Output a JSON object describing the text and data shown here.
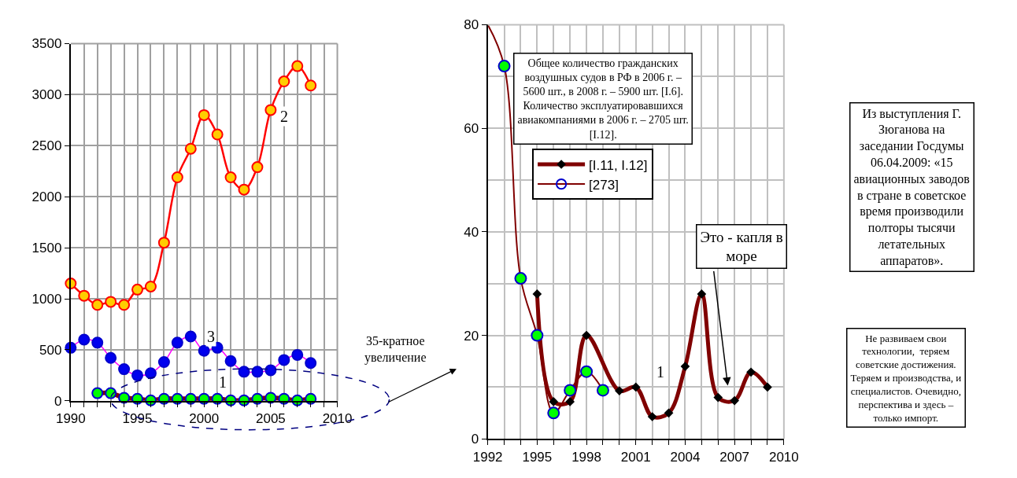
{
  "chart_data": [
    {
      "type": "line",
      "xlim": [
        1990,
        2010
      ],
      "xticks": [
        1990,
        1995,
        2000,
        2005,
        2010
      ],
      "ylim": [
        0,
        3500
      ],
      "yticks": [
        0,
        500,
        1000,
        1500,
        2000,
        2500,
        3000,
        3500
      ],
      "grid": true,
      "legend": false,
      "marker": "circle",
      "series": [
        {
          "color": "#ff0000",
          "colors": [
            "#ffcc00",
            "#ffcc00",
            "#ffcc00",
            "#ffcc00",
            "#ffcc00",
            "#ffcc00",
            "#ffcc00",
            "#ffcc00",
            "#ffcc00",
            "#ffcc00",
            "#ffcc00",
            "#ffcc00",
            "#ffcc00",
            "#ffcc00",
            "#ffcc00",
            "#ffcc00",
            "#ffcc00",
            "#ffcc00",
            "#ffcc00"
          ],
          "x": [
            1990,
            1991,
            1992,
            1993,
            1994,
            1995,
            1996,
            1997,
            1998,
            1999,
            2000,
            2001,
            2002,
            2003,
            2004,
            2005,
            2006,
            2007,
            2008
          ],
          "values": [
            1150,
            1030,
            940,
            970,
            940,
            1090,
            1120,
            1550,
            2190,
            2470,
            2800,
            2610,
            2190,
            2070,
            2290,
            2850,
            3130,
            3280,
            3090
          ]
        },
        {
          "color": "#ff00ff",
          "colors": [
            "#0000ee",
            "#0000ee",
            "#0000ee",
            "#0000ee",
            "#0000ee",
            "#0000ee",
            "#0000ee",
            "#0000ee",
            "#0000ee",
            "#0000ee",
            "#0000ee",
            "#0000ee",
            "#0000ee",
            "#0000ee",
            "#0000ee",
            "#0000ee",
            "#0000ee",
            "#0000ee",
            "#0000ee"
          ],
          "x": [
            1990,
            1991,
            1992,
            1993,
            1994,
            1995,
            1996,
            1997,
            1998,
            1999,
            2000,
            2001,
            2002,
            2003,
            2004,
            2005,
            2006,
            2007,
            2008
          ],
          "values": [
            520,
            600,
            570,
            420,
            310,
            250,
            270,
            380,
            570,
            630,
            490,
            520,
            390,
            285,
            285,
            300,
            400,
            450,
            370
          ]
        },
        {
          "color": "#800000",
          "colors": [
            "#00ff00",
            "#00ff00",
            "#00ff00",
            "#00ff00",
            "#00ff00",
            "#00ff00",
            "#00ff00",
            "#00ff00",
            "#00ff00",
            "#00ff00",
            "#00ff00",
            "#00ff00",
            "#00ff00",
            "#00ff00",
            "#00ff00",
            "#00ff00",
            "#00ff00"
          ],
          "x": [
            1992,
            1993,
            1994,
            1995,
            1996,
            1997,
            1998,
            1999,
            2000,
            2001,
            2002,
            2003,
            2004,
            2005,
            2006,
            2007,
            2008
          ],
          "values": [
            75,
            75,
            30,
            20,
            5,
            20,
            20,
            20,
            20,
            20,
            5,
            5,
            20,
            30,
            20,
            5,
            20
          ]
        }
      ],
      "annotations": [
        {
          "text": "2",
          "x": 2006,
          "y": 2790
        },
        {
          "text": "3",
          "x": 2000.5,
          "y": 627
        },
        {
          "text": "1",
          "x": 2001.4,
          "y": 187
        },
        "35-кратное\nувеличение"
      ]
    },
    {
      "type": "line",
      "xlim": [
        1992,
        2010
      ],
      "xticks": [
        1992,
        1995,
        1998,
        2001,
        2004,
        2007,
        2010
      ],
      "ylim": [
        0,
        80
      ],
      "yticks": [
        0,
        20,
        40,
        60,
        80
      ],
      "grid": true,
      "legend": "top left",
      "series": [
        {
          "name": "[I.11, I.12]",
          "color": "#800000",
          "marker": "diamond",
          "colors": [
            "#000000",
            "#000000",
            "#000000",
            "#000000",
            "#000000",
            "#000000",
            "#000000",
            "#000000",
            "#000000",
            "#000000",
            "#000000",
            "#000000",
            "#000000",
            "#000000"
          ],
          "x": [
            1995,
            1996,
            1997,
            1998,
            2000,
            2001,
            2002,
            2003,
            2004,
            2005,
            2006,
            2007,
            2008,
            2009
          ],
          "values": [
            28,
            7.2,
            7.2,
            20,
            9.3,
            10,
            4.3,
            5,
            14,
            28,
            8,
            7.4,
            12.9,
            10
          ]
        },
        {
          "name": "[273]",
          "color": "#800000",
          "marker": "circle",
          "colors": [
            null,
            "#00ff00",
            "#00ff00",
            "#00ff00",
            "#00ff00",
            "#00ff00",
            "#00ff00",
            "#00ff00"
          ],
          "x": [
            1992,
            1993,
            1994,
            1995,
            1996,
            1997,
            1998,
            1999
          ],
          "values": [
            80,
            72,
            31,
            20,
            5,
            9.4,
            13,
            9.4
          ]
        }
      ],
      "annotations": [
        "Общее количество гражданских\nвоздушных судов в РФ в 2006 г. –\n5600 шт., в 2008 г. – 5900 шт. [I.6].\nКоличество эксплуатировавшихся\nавиакомпаниями в 2006 г. – 2705 шт.\n[I.12].",
        "Из выступления Г.\nЗюганова на\nзаседании Госдумы\n06.04.2009: «15\nавиационных заводов\nв стране в советское\nвремя производили\nполторы тысячи\nлетательных\nаппаратов».",
        "Не развиваем свои\nтехнологии,  теряем\nсоветские достижения.\nТеряем и производства, и\nспециалистов. Очевидно,\nперспектива и здесь –\nтолько импорт.",
        "Это - капля в\nморе",
        {
          "text": "1",
          "x": 2002.5,
          "y": 13
        }
      ]
    }
  ]
}
